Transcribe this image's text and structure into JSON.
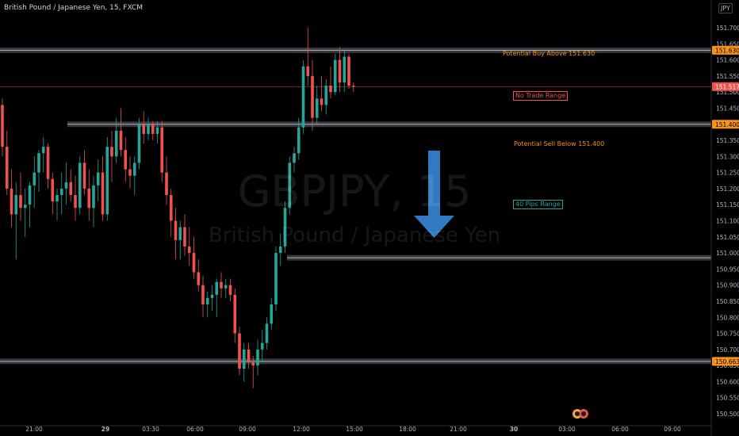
{
  "header": {
    "title": "British Pound / Japanese Yen, 15, FXCM",
    "currency_button": "JPY"
  },
  "watermark": {
    "symbol": "GBPJPY, 15",
    "name": "British Pound / Japanese Yen"
  },
  "annotations": {
    "buy_label": "Potential Buy Above 151.630",
    "no_trade_label": "No Trade Range",
    "sell_label": "Potential Sell Below 151.400",
    "pips_label": "40 Pips Range"
  },
  "colors": {
    "up": "#26a69a",
    "down": "#ef5350",
    "zone": "#787b86",
    "buy_text": "#f7931a",
    "arrow": "#3179c1"
  },
  "chart_data": {
    "type": "candlestick",
    "title": "British Pound / Japanese Yen, 15, FXCM",
    "symbol": "GBPJPY",
    "interval": "15",
    "y_ticks": [
      "151.700",
      "151.650",
      "151.600",
      "151.550",
      "151.500",
      "151.450",
      "151.400",
      "151.350",
      "151.300",
      "151.250",
      "151.200",
      "151.150",
      "151.100",
      "151.050",
      "151.000",
      "150.950",
      "150.900",
      "150.850",
      "150.800",
      "150.750",
      "150.700",
      "150.650",
      "150.600",
      "150.550",
      "150.500"
    ],
    "ylim": [
      150.48,
      151.735
    ],
    "x_ticks": [
      "21:00",
      "29",
      "03:30",
      "06:00",
      "09:00",
      "12:00",
      "15:00",
      "18:00",
      "21:00",
      "30",
      "03:00",
      "06:00",
      "09:00"
    ],
    "price_tags": [
      {
        "label": "151.630",
        "value": 151.63,
        "kind": "level"
      },
      {
        "label": "151.517",
        "value": 151.517,
        "kind": "last"
      },
      {
        "label": "151.400",
        "value": 151.4,
        "kind": "level"
      },
      {
        "label": "150.663",
        "value": 150.663,
        "kind": "level"
      }
    ],
    "levels": [
      {
        "value": 151.63,
        "kind": "zone"
      },
      {
        "value": 151.4,
        "kind": "zone"
      },
      {
        "value": 150.985,
        "kind": "zone"
      },
      {
        "value": 150.663,
        "kind": "zone"
      }
    ],
    "candles": [
      [
        151.46,
        151.48,
        151.3,
        151.33
      ],
      [
        151.33,
        151.38,
        151.18,
        151.2
      ],
      [
        151.2,
        151.26,
        151.08,
        151.12
      ],
      [
        151.12,
        151.22,
        150.98,
        151.18
      ],
      [
        151.18,
        151.25,
        151.1,
        151.14
      ],
      [
        151.14,
        151.2,
        151.05,
        151.15
      ],
      [
        151.15,
        151.22,
        151.08,
        151.21
      ],
      [
        151.21,
        151.3,
        151.14,
        151.25
      ],
      [
        151.25,
        151.32,
        151.19,
        151.31
      ],
      [
        151.31,
        151.36,
        151.25,
        151.33
      ],
      [
        151.33,
        151.34,
        151.2,
        151.23
      ],
      [
        151.23,
        151.25,
        151.12,
        151.16
      ],
      [
        151.16,
        151.2,
        151.1,
        151.18
      ],
      [
        151.18,
        151.25,
        151.12,
        151.2
      ],
      [
        151.2,
        151.28,
        151.15,
        151.22
      ],
      [
        151.22,
        151.26,
        151.16,
        151.18
      ],
      [
        151.18,
        151.24,
        151.1,
        151.14
      ],
      [
        151.14,
        151.3,
        151.12,
        151.28
      ],
      [
        151.28,
        151.32,
        151.18,
        151.2
      ],
      [
        151.2,
        151.26,
        151.1,
        151.14
      ],
      [
        151.14,
        151.24,
        151.08,
        151.21
      ],
      [
        151.21,
        151.29,
        151.16,
        151.25
      ],
      [
        151.25,
        151.3,
        151.1,
        151.12
      ],
      [
        151.12,
        151.36,
        151.1,
        151.33
      ],
      [
        151.33,
        151.38,
        151.22,
        151.3
      ],
      [
        151.3,
        151.42,
        151.28,
        151.38
      ],
      [
        151.38,
        151.45,
        151.3,
        151.32
      ],
      [
        151.32,
        151.36,
        151.22,
        151.26
      ],
      [
        151.26,
        151.3,
        151.2,
        151.24
      ],
      [
        151.24,
        151.3,
        151.18,
        151.28
      ],
      [
        151.28,
        151.42,
        151.26,
        151.4
      ],
      [
        151.4,
        151.44,
        151.34,
        151.37
      ],
      [
        151.37,
        151.42,
        151.35,
        151.4
      ],
      [
        151.4,
        151.41,
        151.35,
        151.37
      ],
      [
        151.37,
        151.41,
        151.34,
        151.39
      ],
      [
        151.39,
        151.41,
        151.22,
        151.25
      ],
      [
        151.25,
        151.3,
        151.15,
        151.18
      ],
      [
        151.18,
        151.2,
        151.05,
        151.1
      ],
      [
        151.1,
        151.14,
        150.98,
        151.04
      ],
      [
        151.04,
        151.1,
        150.98,
        151.08
      ],
      [
        151.08,
        151.12,
        150.99,
        151.02
      ],
      [
        151.02,
        151.08,
        150.96,
        151.0
      ],
      [
        151.0,
        151.05,
        150.92,
        150.94
      ],
      [
        150.94,
        150.98,
        150.88,
        150.9
      ],
      [
        150.9,
        150.93,
        150.8,
        150.84
      ],
      [
        150.84,
        150.88,
        150.8,
        150.86
      ],
      [
        150.86,
        150.9,
        150.82,
        150.87
      ],
      [
        150.87,
        150.92,
        150.8,
        150.91
      ],
      [
        150.91,
        150.94,
        150.86,
        150.89
      ],
      [
        150.89,
        150.92,
        150.86,
        150.9
      ],
      [
        150.9,
        150.92,
        150.85,
        150.87
      ],
      [
        150.87,
        150.89,
        150.72,
        150.75
      ],
      [
        150.75,
        150.77,
        150.62,
        150.64
      ],
      [
        150.64,
        150.72,
        150.6,
        150.7
      ],
      [
        150.7,
        150.72,
        150.64,
        150.66
      ],
      [
        150.66,
        150.68,
        150.58,
        150.65
      ],
      [
        150.65,
        150.73,
        150.62,
        150.7
      ],
      [
        150.7,
        150.76,
        150.66,
        150.72
      ],
      [
        150.72,
        150.8,
        150.7,
        150.78
      ],
      [
        150.78,
        150.86,
        150.76,
        150.84
      ],
      [
        150.84,
        151.02,
        150.82,
        151.0
      ],
      [
        151.0,
        151.06,
        150.96,
        151.02
      ],
      [
        151.02,
        151.16,
        151.0,
        151.14
      ],
      [
        151.14,
        151.3,
        151.12,
        151.28
      ],
      [
        151.28,
        151.33,
        151.25,
        151.31
      ],
      [
        151.31,
        151.42,
        151.29,
        151.39
      ],
      [
        151.39,
        151.6,
        151.37,
        151.58
      ],
      [
        151.58,
        151.7,
        151.52,
        151.55
      ],
      [
        151.55,
        151.6,
        151.38,
        151.42
      ],
      [
        151.42,
        151.52,
        151.4,
        151.48
      ],
      [
        151.48,
        151.55,
        151.44,
        151.46
      ],
      [
        151.46,
        151.54,
        151.43,
        151.52
      ],
      [
        151.52,
        151.58,
        151.48,
        151.5
      ],
      [
        151.5,
        151.62,
        151.49,
        151.6
      ],
      [
        151.6,
        151.64,
        151.5,
        151.53
      ],
      [
        151.53,
        151.63,
        151.5,
        151.61
      ],
      [
        151.61,
        151.62,
        151.51,
        151.52
      ],
      [
        151.52,
        151.53,
        151.5,
        151.517
      ]
    ]
  }
}
